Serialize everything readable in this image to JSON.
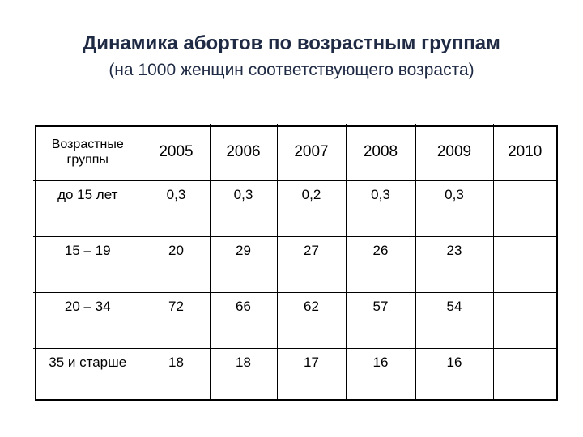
{
  "slide": {
    "title": "Динамика абортов по возрастным группам",
    "subtitle": "(на 1000 женщин соответствующего возраста)"
  },
  "table": {
    "headers": [
      "Возрастные группы",
      "2005",
      "2006",
      "2007",
      "2008",
      "2009",
      "2010"
    ],
    "rows": [
      {
        "group": "до 15 лет",
        "values": [
          "0,3",
          "0,3",
          "0,2",
          "0,3",
          "0,3",
          ""
        ]
      },
      {
        "group": "15 – 19",
        "values": [
          "20",
          "29",
          "27",
          "26",
          "23",
          ""
        ]
      },
      {
        "group": "20 – 34",
        "values": [
          "72",
          "66",
          "62",
          "57",
          "54",
          ""
        ]
      },
      {
        "group": "35 и старше",
        "values": [
          "18",
          "18",
          "17",
          "16",
          "16",
          ""
        ]
      }
    ]
  }
}
